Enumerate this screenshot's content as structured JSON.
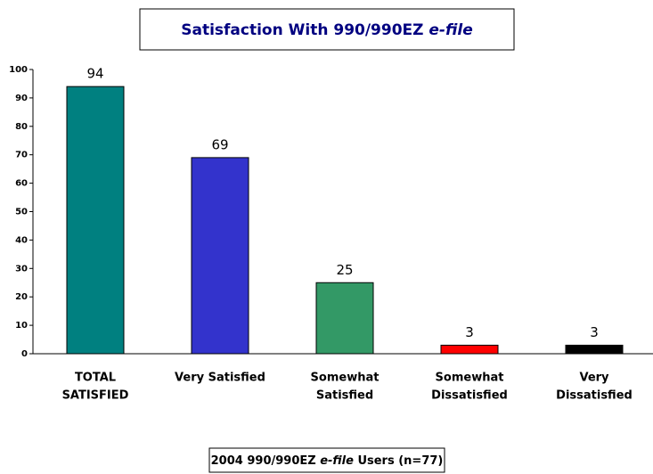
{
  "chart_data": {
    "type": "bar",
    "title": [
      {
        "text": "Satisfaction With 990/990EZ "
      },
      {
        "text": "e-file",
        "italic": true
      }
    ],
    "caption": [
      {
        "text": "2004 990/990EZ "
      },
      {
        "text": "e-file",
        "italic": true
      },
      {
        "text": " Users (n=77)"
      }
    ],
    "categories": [
      [
        "TOTAL",
        "SATISFIED"
      ],
      [
        "Very Satisfied"
      ],
      [
        "Somewhat",
        "Satisfied"
      ],
      [
        "Somewhat",
        "Dissatisfied"
      ],
      [
        "Very",
        "Dissatisfied"
      ]
    ],
    "values": [
      94,
      69,
      25,
      3,
      3
    ],
    "colors": [
      "#008080",
      "#3333cc",
      "#339966",
      "#ff0000",
      "#000000"
    ],
    "ylim": [
      0,
      100
    ],
    "yticks": [
      0,
      10,
      20,
      30,
      40,
      50,
      60,
      70,
      80,
      90,
      100
    ],
    "grid": false
  }
}
